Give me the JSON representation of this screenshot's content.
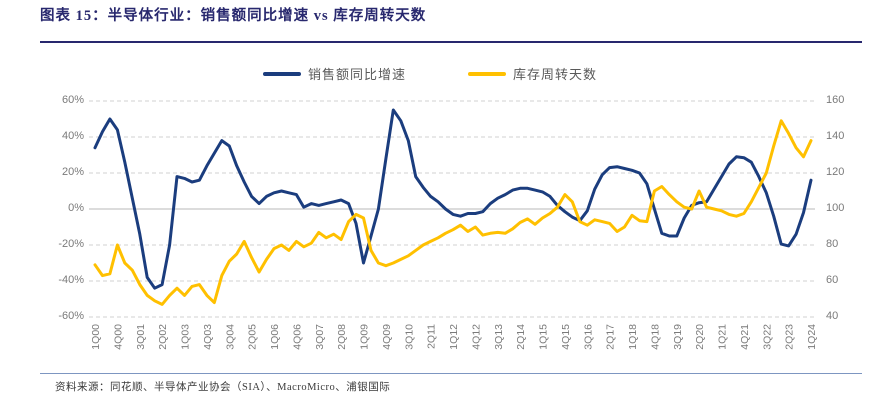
{
  "header": {
    "title": "图表 15：半导体行业：销售额同比增速 vs 库存周转天数"
  },
  "legend": {
    "series1": "销售额同比增速",
    "series2": "库存周转天数"
  },
  "footer": {
    "source": "资料来源：同花顺、半导体产业协会（SIA）、MacroMicro、浦银国际"
  },
  "colors": {
    "title_navy": "#28286e",
    "sales_line": "#1b3d7e",
    "inventory_line": "#ffc000",
    "grid_dashed": "#d9d9d9",
    "grid_zero": "#c8c8c8",
    "tick_text": "#7a7a7a",
    "footer_rule": "#7d96c1"
  },
  "chart_data": {
    "type": "line",
    "title": "半导体行业：销售额同比增速 vs 库存周转天数",
    "grid": "horizontal-dashed, zero-line solid",
    "legend_position": "top-center",
    "left_axis": {
      "label": "销售额同比增速 (%)",
      "range": [
        -60,
        60
      ],
      "ticks": [
        "60%",
        "40%",
        "20%",
        "0%",
        "-20%",
        "-40%",
        "-60%"
      ]
    },
    "right_axis": {
      "label": "库存周转天数 (天)",
      "range": [
        40,
        160
      ],
      "ticks": [
        "160",
        "140",
        "120",
        "100",
        "80",
        "60",
        "40"
      ]
    },
    "x_tick_labels": [
      "1Q00",
      "4Q00",
      "3Q01",
      "2Q02",
      "1Q03",
      "4Q03",
      "3Q04",
      "2Q05",
      "1Q06",
      "4Q06",
      "3Q07",
      "2Q08",
      "1Q09",
      "4Q09",
      "3Q10",
      "2Q11",
      "1Q12",
      "4Q12",
      "3Q13",
      "2Q14",
      "1Q15",
      "4Q15",
      "3Q16",
      "2Q17",
      "1Q18",
      "4Q18",
      "3Q19",
      "2Q20",
      "1Q21",
      "4Q21",
      "3Q22",
      "2Q23",
      "1Q24"
    ],
    "x": [
      "1Q00",
      "2Q00",
      "3Q00",
      "4Q00",
      "1Q01",
      "2Q01",
      "3Q01",
      "4Q01",
      "1Q02",
      "2Q02",
      "3Q02",
      "4Q02",
      "1Q03",
      "2Q03",
      "3Q03",
      "4Q03",
      "1Q04",
      "2Q04",
      "3Q04",
      "4Q04",
      "1Q05",
      "2Q05",
      "3Q05",
      "4Q05",
      "1Q06",
      "2Q06",
      "3Q06",
      "4Q06",
      "1Q07",
      "2Q07",
      "3Q07",
      "4Q07",
      "1Q08",
      "2Q08",
      "3Q08",
      "4Q08",
      "1Q09",
      "2Q09",
      "3Q09",
      "4Q09",
      "1Q10",
      "2Q10",
      "3Q10",
      "4Q10",
      "1Q11",
      "2Q11",
      "3Q11",
      "4Q11",
      "1Q12",
      "2Q12",
      "3Q12",
      "4Q12",
      "1Q13",
      "2Q13",
      "3Q13",
      "4Q13",
      "1Q14",
      "2Q14",
      "3Q14",
      "4Q14",
      "1Q15",
      "2Q15",
      "3Q15",
      "4Q15",
      "1Q16",
      "2Q16",
      "3Q16",
      "4Q16",
      "1Q17",
      "2Q17",
      "3Q17",
      "4Q17",
      "1Q18",
      "2Q18",
      "3Q18",
      "4Q18",
      "1Q19",
      "2Q19",
      "3Q19",
      "4Q19",
      "1Q20",
      "2Q20",
      "3Q20",
      "4Q20",
      "1Q21",
      "2Q21",
      "3Q21",
      "4Q21",
      "1Q22",
      "2Q22",
      "3Q22",
      "4Q22",
      "1Q23",
      "2Q23",
      "3Q23",
      "4Q23",
      "1Q24"
    ],
    "series": [
      {
        "name": "销售额同比增速",
        "axis": "left",
        "unit": "%",
        "color": "#1b3d7e",
        "values": [
          34,
          43,
          50,
          44,
          26,
          6,
          -14,
          -38,
          -44,
          -42,
          -20,
          18,
          17,
          15,
          16,
          24,
          31,
          38,
          35,
          24,
          15,
          7,
          3,
          7,
          9,
          10,
          9,
          8,
          1,
          3,
          2,
          3,
          4,
          5,
          3,
          -8,
          -30,
          -15,
          0,
          28,
          55,
          49,
          38,
          18,
          12,
          7,
          4,
          0,
          -3,
          -4,
          -2.5,
          -2.5,
          -1.5,
          3,
          6,
          8,
          10.5,
          11.5,
          11.5,
          10.5,
          9.5,
          7,
          2,
          -1.5,
          -4.5,
          -6.5,
          -1,
          11,
          19,
          23,
          23.5,
          22.5,
          21.5,
          20,
          14,
          0,
          -13.5,
          -15,
          -15,
          -5,
          2,
          3.5,
          4,
          11,
          18,
          25,
          29,
          28.5,
          26,
          18,
          9,
          -4,
          -19.5,
          -20.5,
          -14,
          -2,
          16
        ]
      },
      {
        "name": "库存周转天数",
        "axis": "right",
        "unit": "天",
        "color": "#ffc000",
        "values": [
          69,
          63,
          64,
          80,
          70,
          66,
          58,
          52,
          49,
          47,
          52,
          56,
          52,
          57,
          58,
          52,
          48,
          63,
          71,
          75,
          82,
          73,
          65,
          72,
          78,
          80,
          77,
          82,
          79,
          81,
          87,
          84,
          86,
          83,
          93,
          97,
          95,
          77,
          70,
          68.5,
          70,
          72,
          74,
          77,
          80,
          82,
          84,
          86.5,
          88.5,
          91,
          87.5,
          90,
          85.5,
          86.5,
          87,
          86.5,
          89,
          92.5,
          94.5,
          91.5,
          95,
          97.5,
          101,
          108,
          104,
          93,
          91,
          94,
          93,
          92,
          87.5,
          90,
          96.5,
          93.5,
          93,
          110,
          112.5,
          108,
          104,
          101,
          100,
          110,
          101,
          100,
          99,
          97,
          96,
          97.5,
          104,
          112,
          120,
          135,
          149,
          142,
          134,
          129,
          138
        ]
      }
    ]
  }
}
